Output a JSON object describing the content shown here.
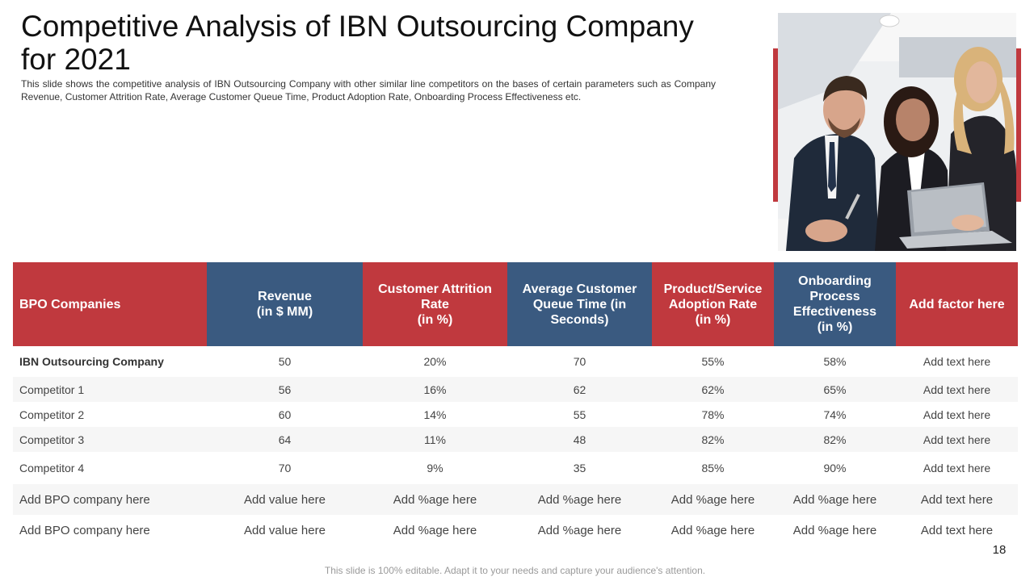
{
  "title": "Competitive Analysis of IBN Outsourcing Company for 2021",
  "subtitle": "This slide shows the competitive analysis of IBN Outsourcing Company with other similar line competitors on the bases of certain parameters such as Company Revenue, Customer Attrition Rate, Average Customer Queue Time, Product Adoption Rate, Onboarding Process Effectiveness etc.",
  "colors": {
    "accent_red": "#c0393e",
    "header_blue": "#3a5a80",
    "row_shade": "#f6f6f6"
  },
  "photo": {
    "icon": "business-team-photo"
  },
  "table": {
    "headers": [
      [
        "BPO Companies"
      ],
      [
        "Revenue",
        "(in $ MM)"
      ],
      [
        "Customer Attrition",
        "Rate",
        "(in %)"
      ],
      [
        "Average Customer",
        "Queue Time (in",
        "Seconds)"
      ],
      [
        "Product/Service",
        "Adoption Rate",
        "(in %)"
      ],
      [
        "Onboarding",
        "Process",
        "Effectiveness",
        "(in %)"
      ],
      [
        "Add factor here"
      ]
    ],
    "rows": [
      [
        "IBN Outsourcing Company",
        "50",
        "20%",
        "70",
        "55%",
        "58%",
        "Add text here"
      ],
      [
        "Competitor 1",
        "56",
        "16%",
        "62",
        "62%",
        "65%",
        "Add text here"
      ],
      [
        "Competitor 2",
        "60",
        "14%",
        "55",
        "78%",
        "74%",
        "Add text here"
      ],
      [
        "Competitor 3",
        "64",
        "11%",
        "48",
        "82%",
        "82%",
        "Add text here"
      ],
      [
        "Competitor 4",
        "70",
        "9%",
        "35",
        "85%",
        "90%",
        "Add text here"
      ],
      [
        "Add BPO company here",
        "Add value here",
        "Add %age here",
        "Add %age here",
        "Add %age here",
        "Add %age here",
        "Add text here"
      ],
      [
        "Add BPO company here",
        "Add value here",
        "Add %age here",
        "Add %age here",
        "Add %age here",
        "Add %age here",
        "Add text here"
      ]
    ]
  },
  "page_number": "18",
  "footer": "This slide is 100% editable. Adapt it to your needs and capture your audience's attention."
}
